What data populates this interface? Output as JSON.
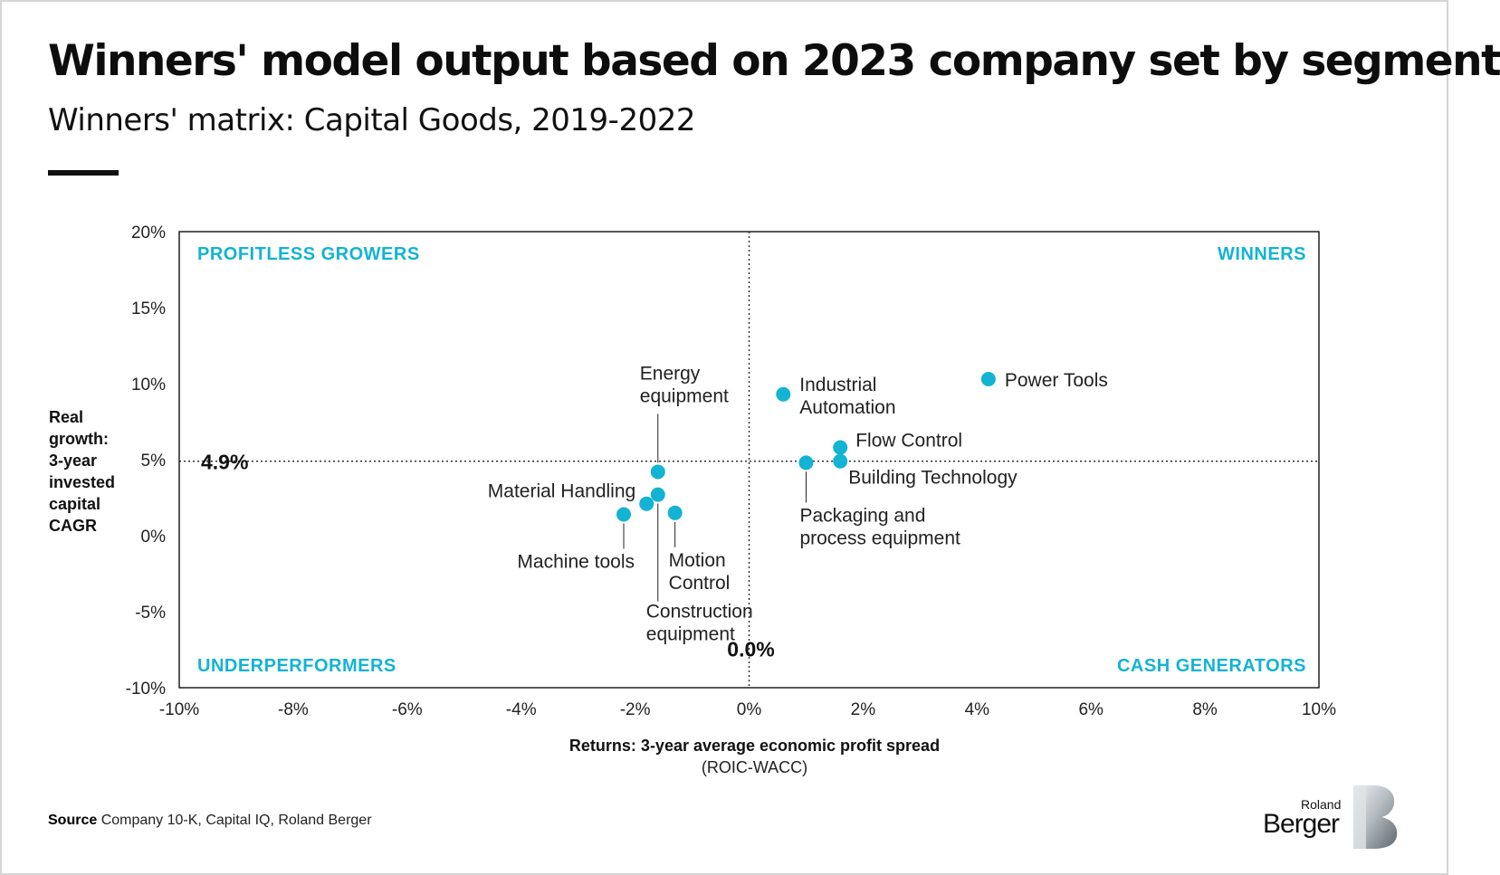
{
  "title": "Winners' model output based on 2023 company set by segment",
  "subtitle": "Winners' matrix: Capital Goods, 2019-2022",
  "colors": {
    "accent": "#13b3d3",
    "text": "#111111",
    "frame": "#d6d6d6"
  },
  "chart_data": {
    "type": "scatter",
    "title": "Winners' matrix: Capital Goods, 2019-2022",
    "xlabel": "Returns: 3-year average economic profit spread",
    "xlabel_sub": "(ROIC-WACC)",
    "ylabel_lines": [
      "Real",
      "growth:",
      "3-year",
      "invested",
      "capital",
      "CAGR"
    ],
    "xlim": [
      -10,
      10
    ],
    "ylim": [
      -10,
      20
    ],
    "x_ticks": [
      -10,
      -8,
      -6,
      -4,
      -2,
      0,
      2,
      4,
      6,
      8,
      10
    ],
    "x_tick_labels": [
      "-10%",
      "-8%",
      "-6%",
      "-4%",
      "-2%",
      "0%",
      "2%",
      "4%",
      "6%",
      "8%",
      "10%"
    ],
    "y_ticks": [
      20,
      15,
      10,
      5,
      0,
      -5,
      -10
    ],
    "y_tick_labels": [
      "20%",
      "15%",
      "10%",
      "5%",
      "0%",
      "-5%",
      "-10%"
    ],
    "grid": false,
    "reference_lines": {
      "x_value": 0.0,
      "x_label": "0.0%",
      "y_value": 4.9,
      "y_label": "4.9%"
    },
    "quadrants": {
      "top_left": "PROFITLESS GROWERS",
      "top_right": "WINNERS",
      "bottom_left": "UNDERPERFORMERS",
      "bottom_right": "CASH GENERATORS"
    },
    "points": [
      {
        "name": "Power Tools",
        "x": 4.2,
        "y": 10.3
      },
      {
        "name": "Industrial Automation",
        "x": 0.6,
        "y": 9.3
      },
      {
        "name": "Flow Control",
        "x": 1.6,
        "y": 5.8
      },
      {
        "name": "Building Technology",
        "x": 1.6,
        "y": 4.9
      },
      {
        "name": "Packaging and process equipment",
        "x": 1.0,
        "y": 4.8
      },
      {
        "name": "Energy equipment",
        "x": -1.6,
        "y": 4.2
      },
      {
        "name": "Material Handling",
        "x": -1.8,
        "y": 2.1
      },
      {
        "name": "Construction equipment",
        "x": -1.6,
        "y": 2.7
      },
      {
        "name": "Machine tools",
        "x": -2.2,
        "y": 1.4
      },
      {
        "name": "Motion Control",
        "x": -1.3,
        "y": 1.5
      }
    ],
    "point_labels": {
      "Power Tools": [
        "Power Tools"
      ],
      "Industrial Automation": [
        "Industrial",
        "Automation"
      ],
      "Flow Control": [
        "Flow Control"
      ],
      "Building Technology": [
        "Building Technology"
      ],
      "Packaging and process equipment": [
        "Packaging and",
        "process equipment"
      ],
      "Energy equipment": [
        "Energy",
        "equipment"
      ],
      "Material Handling": [
        "Material Handling"
      ],
      "Construction equipment": [
        "Construction",
        "equipment"
      ],
      "Machine tools": [
        "Machine tools"
      ],
      "Motion Control": [
        "Motion",
        "Control"
      ]
    }
  },
  "source": {
    "label": "Source",
    "text": "Company 10-K, Capital IQ, Roland Berger"
  },
  "logo": {
    "line1": "Roland",
    "line2": "Berger",
    "mark": "B"
  }
}
